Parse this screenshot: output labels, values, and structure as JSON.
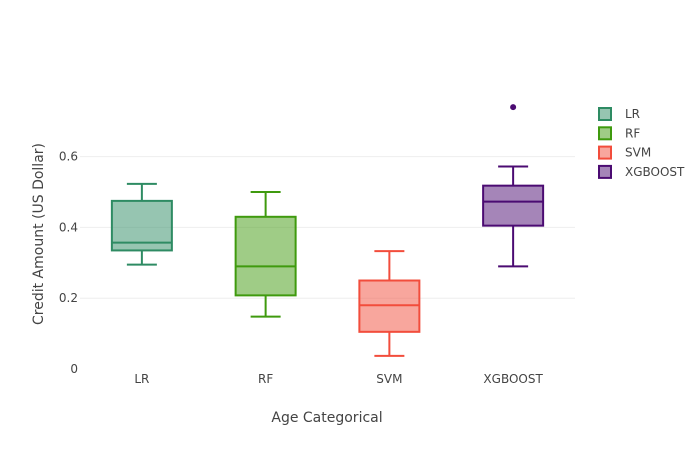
{
  "chart_data": {
    "type": "box",
    "xlabel": "Age Categorical",
    "ylabel": "Credit Amount (US Dollar)",
    "ylim": [
      0,
      0.76
    ],
    "y_ticks": [
      {
        "value": 0,
        "label": "0"
      },
      {
        "value": 0.2,
        "label": "0.2"
      },
      {
        "value": 0.4,
        "label": "0.4"
      },
      {
        "value": 0.6,
        "label": "0.6"
      }
    ],
    "grid": true,
    "legend_position": "top-right",
    "categories": [
      "LR",
      "RF",
      "SVM",
      "XGBOOST"
    ],
    "series": [
      {
        "name": "LR",
        "color": "#2e8b63",
        "fill": "rgba(46,139,99,0.5)",
        "min": 0.295,
        "q1": 0.335,
        "median": 0.357,
        "q3": 0.475,
        "max": 0.523,
        "outliers": []
      },
      {
        "name": "RF",
        "color": "#3f9a0e",
        "fill": "rgba(63,154,14,0.5)",
        "min": 0.148,
        "q1": 0.208,
        "median": 0.29,
        "q3": 0.43,
        "max": 0.5,
        "outliers": []
      },
      {
        "name": "SVM",
        "color": "#f24d3c",
        "fill": "rgba(242,77,60,0.5)",
        "min": 0.037,
        "q1": 0.105,
        "median": 0.18,
        "q3": 0.25,
        "max": 0.333,
        "outliers": []
      },
      {
        "name": "XGBOOST",
        "color": "#4b0b72",
        "fill": "rgba(75,11,114,0.5)",
        "min": 0.29,
        "q1": 0.405,
        "median": 0.473,
        "q3": 0.518,
        "max": 0.572,
        "outliers": [
          0.74
        ]
      }
    ]
  }
}
